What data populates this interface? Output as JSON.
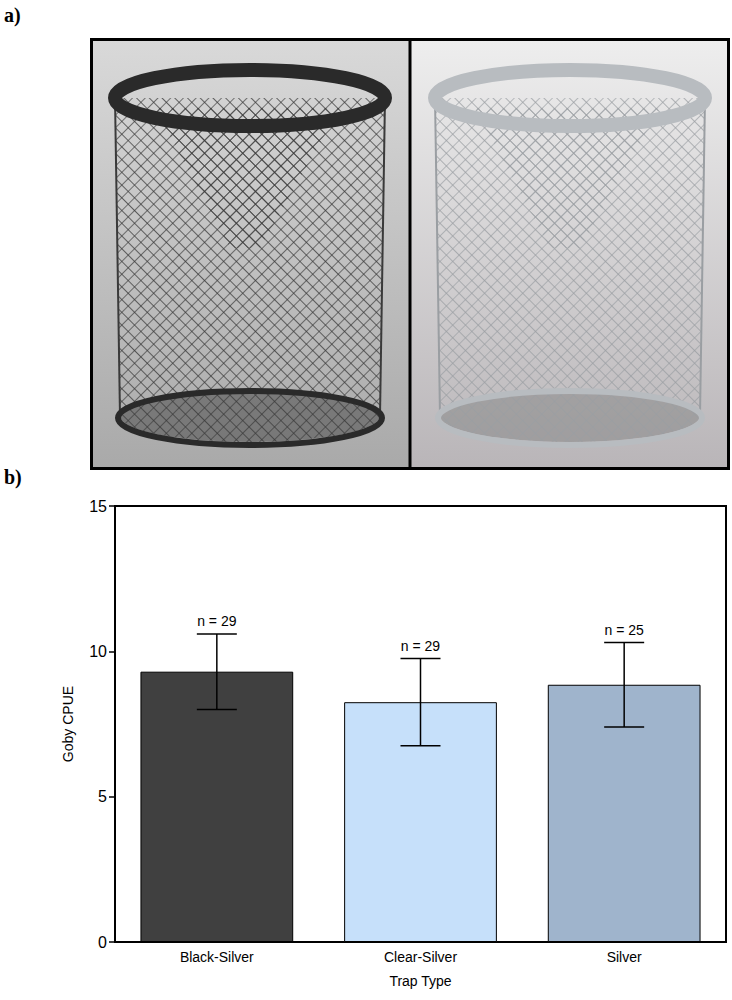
{
  "panel_labels": [
    "a)",
    "b)"
  ],
  "chart_data": {
    "type": "bar",
    "categories": [
      "Black-Silver",
      "Clear-Silver",
      "Silver"
    ],
    "values": [
      9.3,
      8.25,
      8.85
    ],
    "error": [
      1.3,
      1.5,
      1.45
    ],
    "annotations": [
      "n = 29",
      "n = 29",
      "n = 25"
    ],
    "colors": [
      "#404040",
      "#c6e0fa",
      "#9fb4cc"
    ],
    "x_label": "Trap Type",
    "y_label": "Goby CPUE",
    "ylim": [
      0,
      15
    ],
    "yticks": [
      0,
      5,
      10,
      15
    ],
    "grid": false
  }
}
